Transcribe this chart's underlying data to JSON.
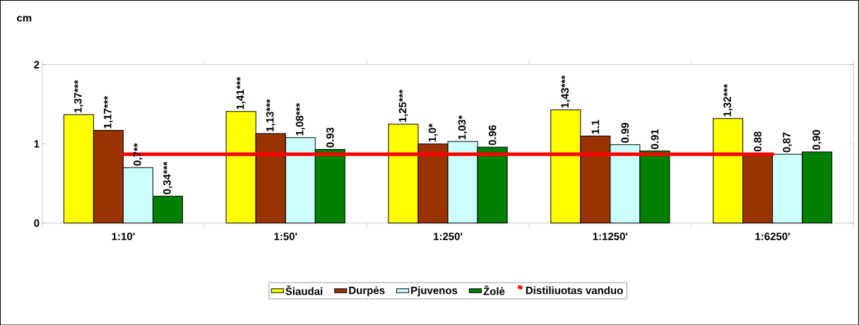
{
  "chart_data": {
    "type": "bar",
    "ylabel": "cm",
    "categories": [
      "1:10'",
      "1:50'",
      "1:250'",
      "1:1250'",
      "1:6250'"
    ],
    "series": [
      {
        "name": "Šiaudai",
        "color": "#ffff00",
        "values": [
          1.37,
          1.41,
          1.25,
          1.43,
          1.32
        ],
        "value_labels": [
          "1,37***",
          "1,41***",
          "1,25***",
          "1,43***",
          "1,32***"
        ]
      },
      {
        "name": "Durpės",
        "color": "#993300",
        "values": [
          1.17,
          1.13,
          1.0,
          1.1,
          0.88
        ],
        "value_labels": [
          "1,17***",
          "1,13***",
          "1,0*",
          "1.1",
          "0.88"
        ]
      },
      {
        "name": "Pjuvenos",
        "color": "#ccffff",
        "values": [
          0.7,
          1.08,
          1.03,
          0.99,
          0.87
        ],
        "value_labels": [
          "0,7**",
          "1,08***",
          "1,03*",
          "0.99",
          "0,87"
        ]
      },
      {
        "name": "Žolė",
        "color": "#008000",
        "values": [
          0.34,
          0.93,
          0.96,
          0.91,
          0.9
        ],
        "value_labels": [
          "0,34***",
          "0.93",
          "0.96",
          "0.91",
          "0,90"
        ]
      },
      {
        "name": "Distiliuotas vanduo",
        "color": "#ff0000",
        "type": "line",
        "values": [
          0.87,
          0.87,
          0.87,
          0.87,
          0.87
        ]
      }
    ],
    "ylim": [
      0,
      2
    ],
    "yticks": [
      0,
      1,
      2
    ],
    "legend": "bottom"
  }
}
